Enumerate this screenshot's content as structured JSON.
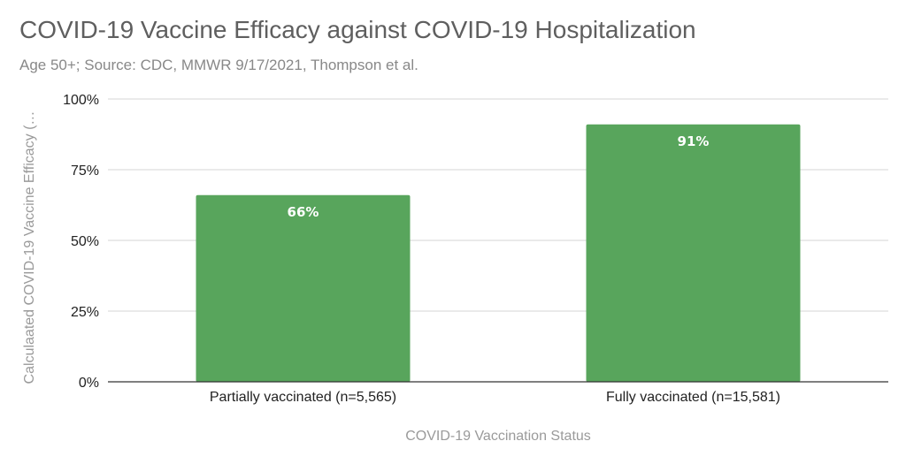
{
  "chart_data": {
    "type": "bar",
    "title": "COVID-19 Vaccine Efficacy against COVID-19 Hospitalization",
    "subtitle": "Age 50+; Source: CDC, MMWR 9/17/2021, Thompson et al.",
    "xlabel": "COVID-19 Vaccination Status",
    "ylabel": "Calculaated COVID-19 Vaccine Efficacy (…",
    "categories": [
      "Partially vaccinated (n=5,565)",
      "Fully vaccinated (n=15,581)"
    ],
    "values": [
      66,
      91
    ],
    "data_labels": [
      "66%",
      "91%"
    ],
    "ylim": [
      0,
      100
    ],
    "yticks": [
      0,
      25,
      50,
      75,
      100
    ],
    "ytick_labels": [
      "0%",
      "25%",
      "50%",
      "75%",
      "100%"
    ],
    "grid": true,
    "legend": "none",
    "bar_color": "#58a55c",
    "data_label_color": "#ffffff"
  }
}
